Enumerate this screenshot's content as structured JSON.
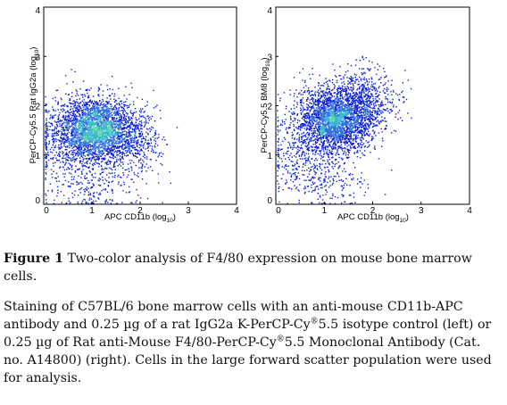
{
  "chart_data": [
    {
      "type": "scatter",
      "panel": "left",
      "xlabel": "APC CD11b",
      "xlabel_unit": "(log10)",
      "ylabel": "PerCP-Cy5.5 Rat IgG2a",
      "ylabel_unit": "(log10)",
      "xlim": [
        0,
        4
      ],
      "ylim": [
        0,
        4
      ],
      "xticks": [
        "0",
        "1",
        "2",
        "3",
        "4"
      ],
      "yticks": [
        "0",
        "1",
        "2",
        "3",
        "4"
      ],
      "colormap": [
        "#0b1fd6",
        "#2e6fe0",
        "#39b8c8",
        "#60d9a0"
      ],
      "populations": [
        {
          "cx": 1.05,
          "cy": 1.55,
          "sx": 0.42,
          "sy": 0.33,
          "n": 2600
        },
        {
          "cx": 1.75,
          "cy": 1.3,
          "sx": 0.35,
          "sy": 0.3,
          "n": 500
        },
        {
          "cx": 0.55,
          "cy": 1.15,
          "sx": 0.45,
          "sy": 0.45,
          "n": 400
        },
        {
          "cx": 1.1,
          "cy": 0.35,
          "sx": 0.5,
          "sy": 0.25,
          "n": 180
        }
      ]
    },
    {
      "type": "scatter",
      "panel": "right",
      "xlabel": "APC CD11b",
      "xlabel_unit": "(log10)",
      "ylabel": "PerCP-Cy5.5 BM8",
      "ylabel_unit": "(log10)",
      "xlim": [
        0,
        4
      ],
      "ylim": [
        0,
        4
      ],
      "xticks": [
        "0",
        "1",
        "2",
        "3",
        "4"
      ],
      "yticks": [
        "0",
        "1",
        "2",
        "3",
        "4"
      ],
      "colormap": [
        "#0b1fd6",
        "#2e6fe0",
        "#39b8c8",
        "#60d9a0"
      ],
      "populations": [
        {
          "cx": 1.2,
          "cy": 1.75,
          "sx": 0.36,
          "sy": 0.33,
          "n": 2400
        },
        {
          "cx": 1.8,
          "cy": 2.05,
          "sx": 0.38,
          "sy": 0.35,
          "n": 700
        },
        {
          "cx": 0.65,
          "cy": 1.15,
          "sx": 0.4,
          "sy": 0.45,
          "n": 500
        },
        {
          "cx": 1.1,
          "cy": 0.4,
          "sx": 0.45,
          "sy": 0.25,
          "n": 150
        }
      ]
    }
  ],
  "caption": {
    "figure_label": "Figure 1",
    "title": "Two-color analysis of F4/80 expression on mouse bone marrow cells.",
    "body_1": "Staining of C57BL/6 bone marrow cells with an anti-mouse CD11b-APC antibody and 0.25 µg of a rat IgG2a K-PerCP-Cy",
    "sup_1": "®",
    "body_2": "5.5 isotype control (left) or 0.25 µg of Rat anti-Mouse F4/80-PerCP-Cy",
    "sup_2": "®",
    "body_3": "5.5 Monoclonal Antibody (Cat. no. A14800) (right). Cells in the large forward scatter population were used for analysis."
  }
}
